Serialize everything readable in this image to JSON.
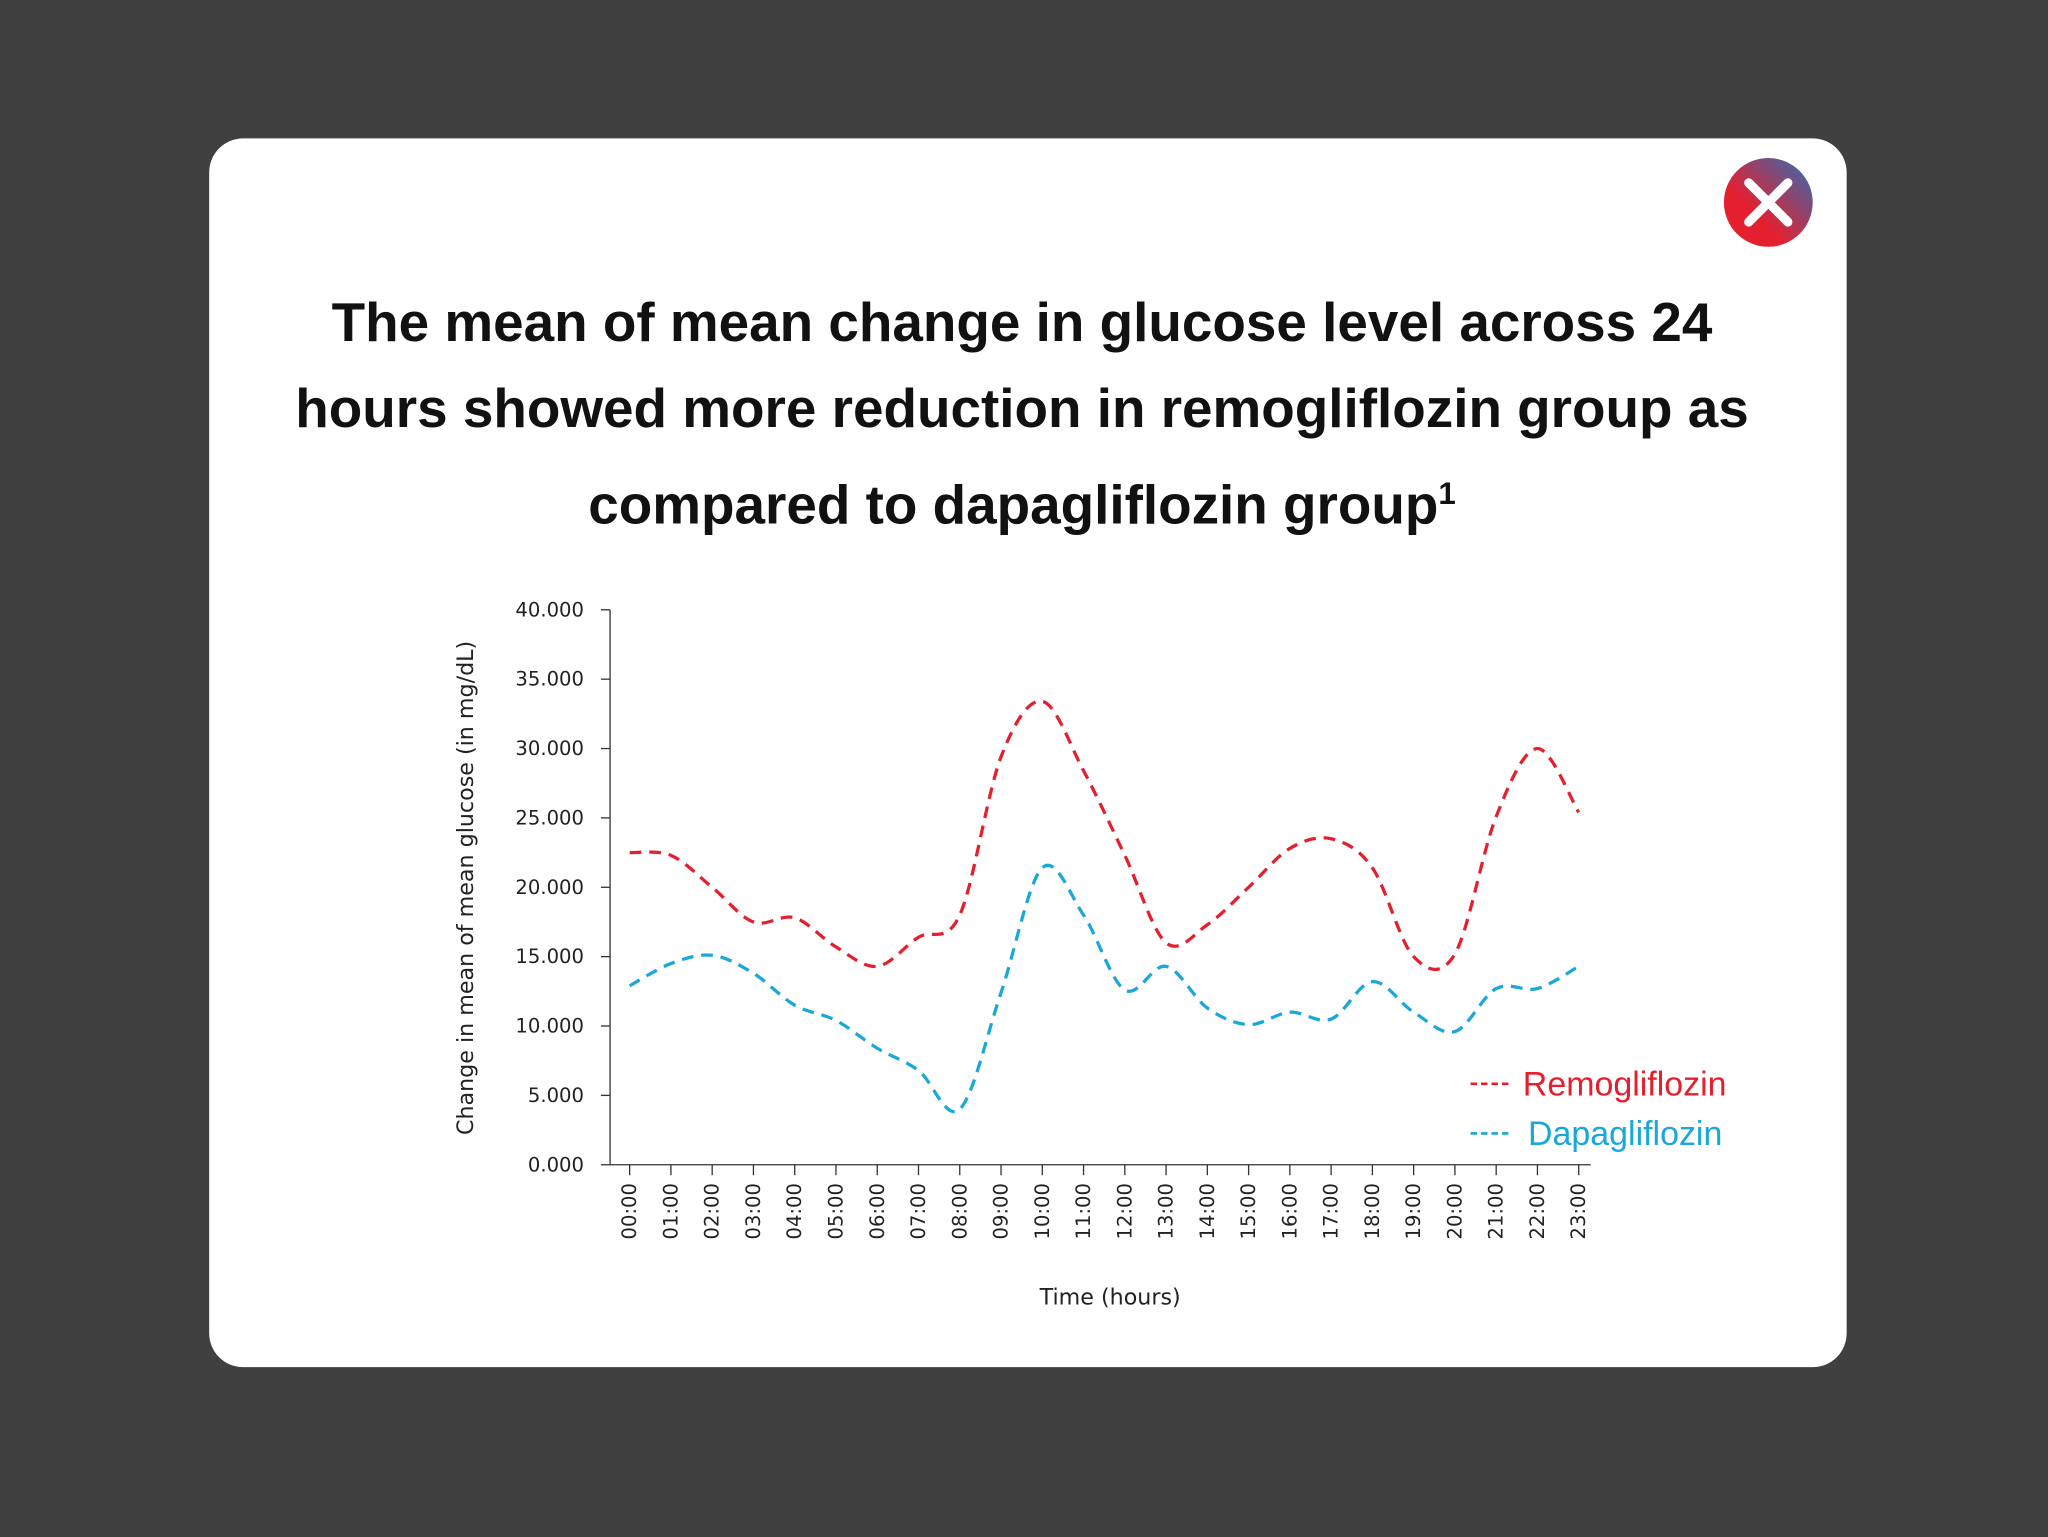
{
  "chart_data": {
    "type": "line",
    "title": "The mean of mean change in glucose level across 24 hours showed more reduction in remogliflozin group as compared to dapagliflozin group",
    "title_note": "1",
    "x_label": "Time (hours)",
    "y_label": "Change in mean of mean glucose (in mg/dL)",
    "categories": [
      "00:00",
      "01:00",
      "02:00",
      "03:00",
      "04:00",
      "05:00",
      "06:00",
      "07:00",
      "08:00",
      "09:00",
      "10:00",
      "11:00",
      "12:00",
      "13:00",
      "14:00",
      "15:00",
      "16:00",
      "17:00",
      "18:00",
      "19:00",
      "20:00",
      "21:00",
      "22:00",
      "23:00"
    ],
    "series": [
      {
        "name": "Remogliflozin",
        "color": "#e5202e",
        "values": [
          22.5,
          22.3,
          20.0,
          17.5,
          17.8,
          15.7,
          14.3,
          16.4,
          18.0,
          29.4,
          33.4,
          28.4,
          22.3,
          16.0,
          17.3,
          20.0,
          22.8,
          23.5,
          21.4,
          15.0,
          15.2,
          25.1,
          30.0,
          25.4
        ]
      },
      {
        "name": "Dapagliflozin",
        "color": "#1aa7d9",
        "values": [
          12.9,
          14.5,
          15.1,
          13.8,
          11.5,
          10.4,
          8.4,
          6.8,
          4.0,
          12.4,
          21.4,
          18.0,
          12.6,
          14.3,
          11.3,
          10.1,
          11.0,
          10.5,
          13.2,
          11.0,
          9.6,
          12.7,
          12.7,
          14.3
        ]
      }
    ],
    "ylim": [
      0,
      40
    ],
    "yticks": [
      {
        "value": 0,
        "label": "0.000"
      },
      {
        "value": 5,
        "label": "5.000"
      },
      {
        "value": 10,
        "label": "10.000"
      },
      {
        "value": 15,
        "label": "15.000"
      },
      {
        "value": 20,
        "label": "20.000"
      },
      {
        "value": 25,
        "label": "25.000"
      },
      {
        "value": 30,
        "label": "30.000"
      },
      {
        "value": 35,
        "label": "35.000"
      },
      {
        "value": 40,
        "label": "40.000"
      }
    ],
    "grid": false,
    "dashed": true,
    "legend": "lower right"
  }
}
